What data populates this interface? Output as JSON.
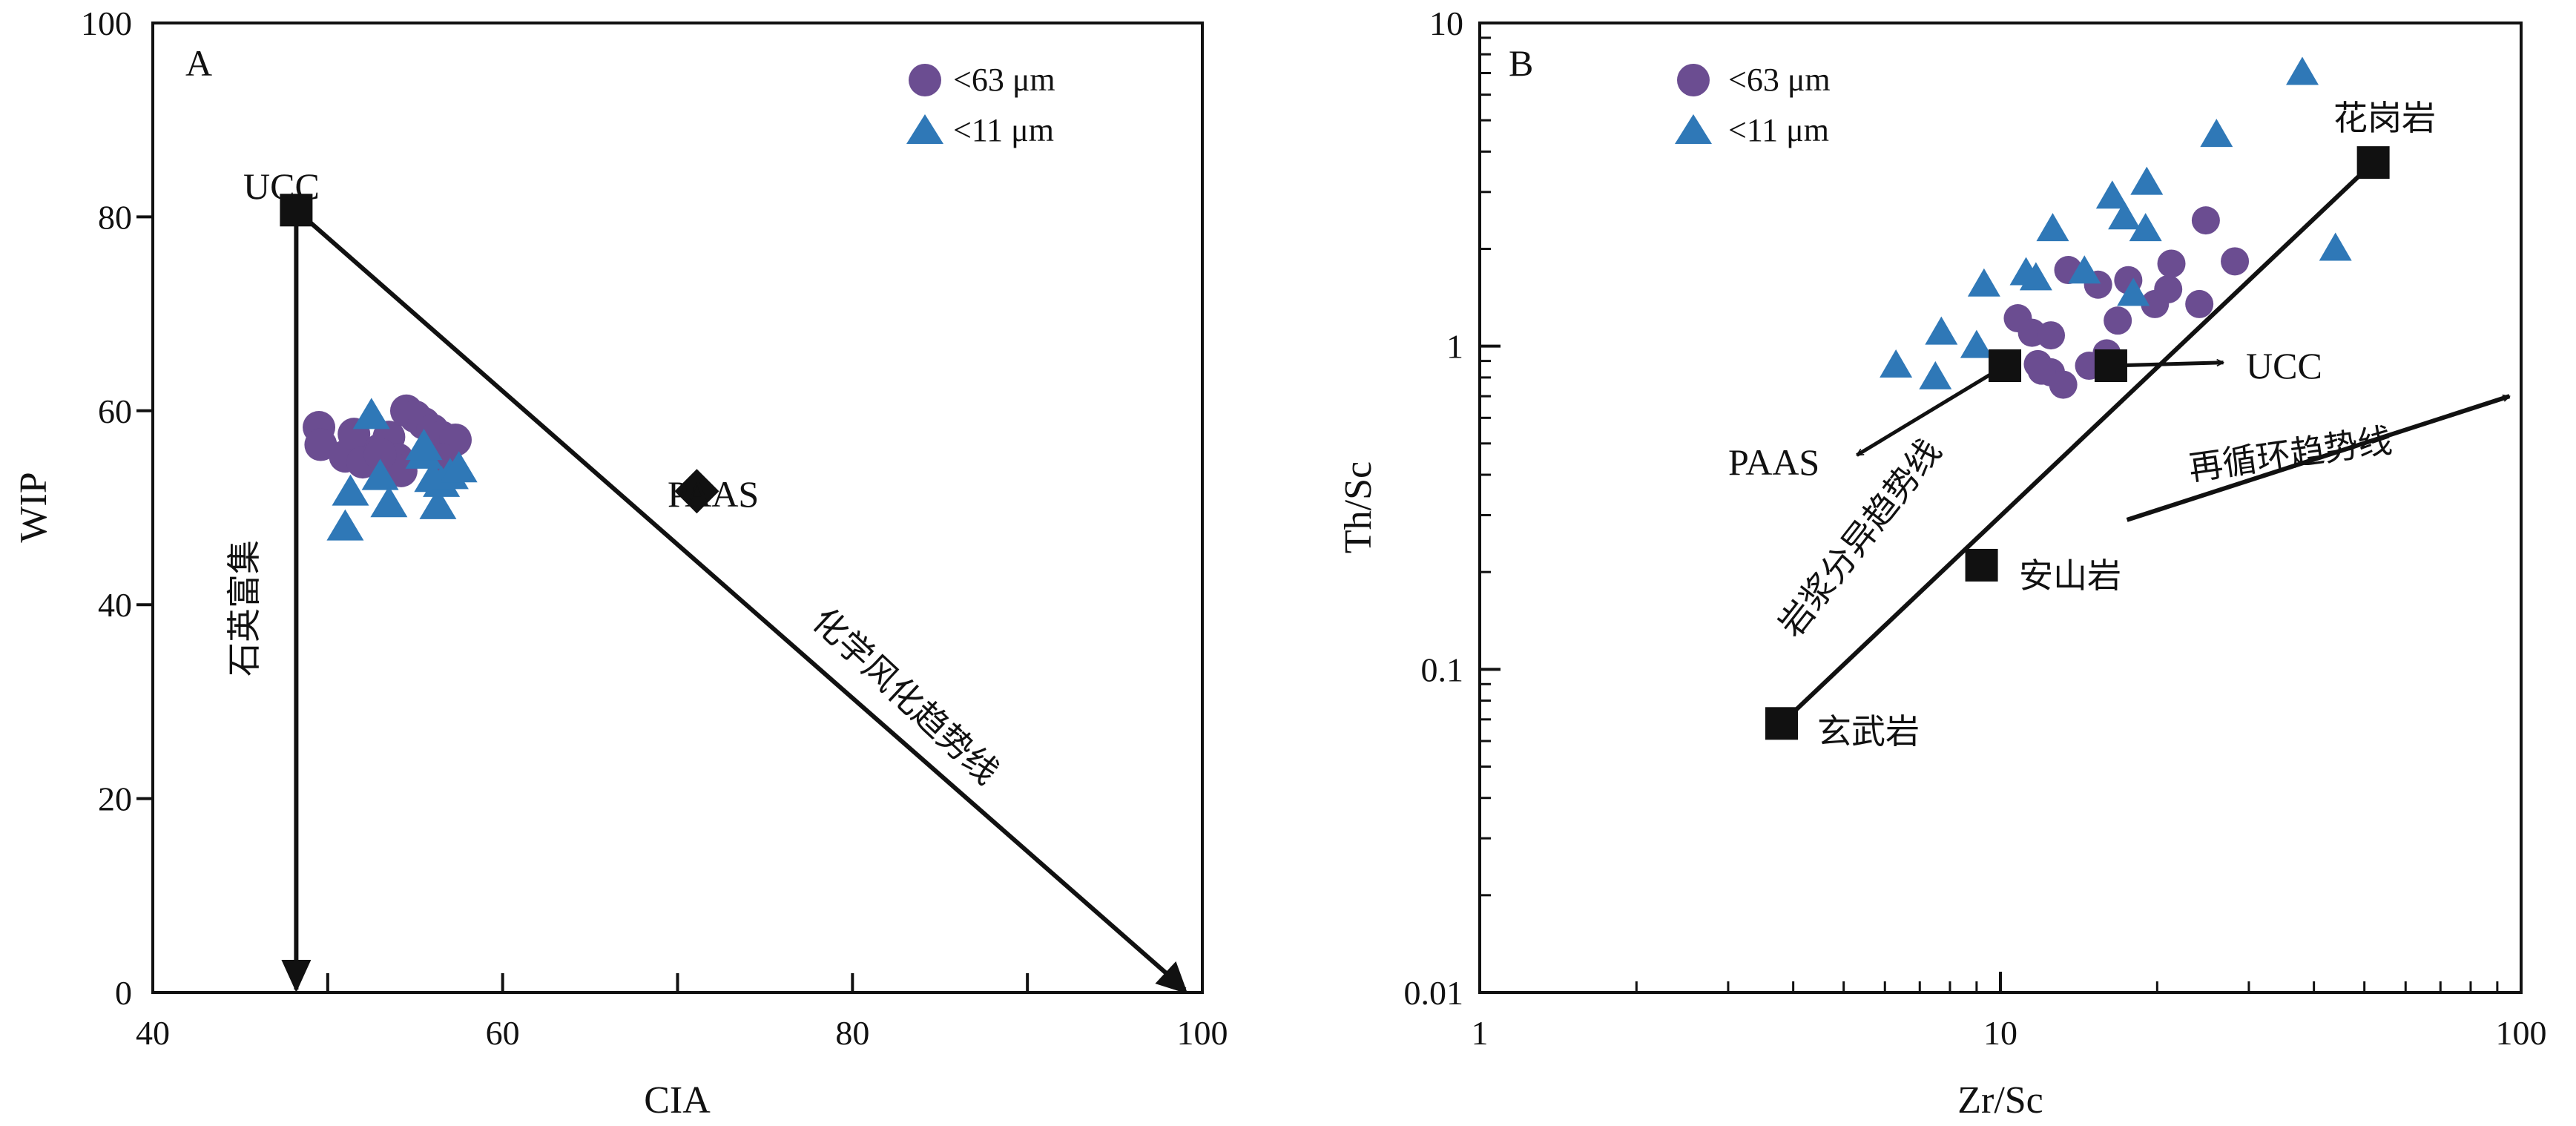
{
  "chart_data": [
    {
      "panel": "A",
      "type": "scatter",
      "xlabel": "CIA",
      "ylabel": "WIP",
      "xlim": [
        40,
        100
      ],
      "ylim": [
        0,
        100
      ],
      "xticks": [
        40,
        60,
        80,
        100
      ],
      "yticks": [
        0,
        20,
        40,
        60,
        80,
        100
      ],
      "x_minor_ticks": [
        50,
        70,
        90
      ],
      "series": [
        {
          "name": "<63 μm",
          "marker": "circle",
          "color": "#6b4d91",
          "points": [
            [
              49.5,
              58.3
            ],
            [
              49.6,
              56.5
            ],
            [
              51.0,
              55.3
            ],
            [
              51.5,
              57.6
            ],
            [
              52.0,
              54.7
            ],
            [
              53.0,
              56.0
            ],
            [
              53.5,
              57.3
            ],
            [
              54.0,
              55.0
            ],
            [
              54.5,
              60.0
            ],
            [
              55.0,
              59.4
            ],
            [
              55.5,
              58.7
            ],
            [
              56.0,
              58.0
            ],
            [
              56.5,
              57.3
            ],
            [
              57.0,
              56.6
            ],
            [
              57.3,
              57.0
            ],
            [
              54.2,
              53.8
            ],
            [
              53.0,
              55.5
            ],
            [
              56.5,
              55.0
            ]
          ]
        },
        {
          "name": "<11 μm",
          "marker": "triangle",
          "color": "#2f78b7",
          "points": [
            [
              51.0,
              48.0
            ],
            [
              51.3,
              51.6
            ],
            [
              52.5,
              59.5
            ],
            [
              53.0,
              53.2
            ],
            [
              53.5,
              50.4
            ],
            [
              55.5,
              55.4
            ],
            [
              56.0,
              53.0
            ],
            [
              56.5,
              52.5
            ],
            [
              56.3,
              50.2
            ],
            [
              57.0,
              53.3
            ],
            [
              57.5,
              54.0
            ],
            [
              55.5,
              56.3
            ]
          ]
        }
      ],
      "reference_points": [
        {
          "label": "UCC",
          "x": 48.2,
          "y": 80.7,
          "marker": "square"
        },
        {
          "label": "PAAS",
          "x": 71.1,
          "y": 51.7,
          "marker": "diamond"
        }
      ],
      "trends": [
        {
          "label": "石英富集",
          "from": [
            48.2,
            80.7
          ],
          "to": [
            48.2,
            0
          ]
        },
        {
          "label": "化学风化趋势线",
          "from": [
            48.2,
            80.7
          ],
          "to": [
            99.0,
            0
          ]
        }
      ]
    },
    {
      "panel": "B",
      "type": "scatter",
      "xlabel": "Zr/Sc",
      "ylabel": "Th/Sc",
      "xscale": "log",
      "yscale": "log",
      "xlim": [
        1,
        100
      ],
      "ylim": [
        0.01,
        10
      ],
      "xticks": [
        1,
        10,
        100
      ],
      "yticks": [
        0.01,
        0.1,
        1,
        10
      ],
      "series": [
        {
          "name": "<63 μm",
          "marker": "circle",
          "color": "#6b4d91",
          "points": [
            [
              10.8,
              1.22
            ],
            [
              11.5,
              1.1
            ],
            [
              12.5,
              1.08
            ],
            [
              11.8,
              0.88
            ],
            [
              12.5,
              0.83
            ],
            [
              13.2,
              0.76
            ],
            [
              13.5,
              1.72
            ],
            [
              15.4,
              1.55
            ],
            [
              14.8,
              0.87
            ],
            [
              16.0,
              0.95
            ],
            [
              16.8,
              1.2
            ],
            [
              17.6,
              1.6
            ],
            [
              19.8,
              1.35
            ],
            [
              21.0,
              1.5
            ],
            [
              21.3,
              1.8
            ],
            [
              24.1,
              1.35
            ],
            [
              24.8,
              2.45
            ],
            [
              28.2,
              1.83
            ],
            [
              12.0,
              0.84
            ]
          ]
        },
        {
          "name": "<11 μm",
          "marker": "triangle",
          "color": "#2f78b7",
          "points": [
            [
              6.3,
              0.87
            ],
            [
              7.5,
              0.8
            ],
            [
              7.7,
              1.1
            ],
            [
              9.0,
              1.0
            ],
            [
              9.3,
              1.55
            ],
            [
              11.2,
              1.68
            ],
            [
              11.7,
              1.62
            ],
            [
              12.6,
              2.3
            ],
            [
              14.5,
              1.7
            ],
            [
              16.4,
              2.9
            ],
            [
              17.3,
              2.5
            ],
            [
              18.0,
              1.45
            ],
            [
              19.1,
              3.2
            ],
            [
              19.0,
              2.3
            ],
            [
              26.0,
              4.5
            ],
            [
              38.0,
              7.0
            ],
            [
              44.0,
              2.0
            ]
          ]
        }
      ],
      "reference_points": [
        {
          "label": "PAAS",
          "x": 10.2,
          "y": 0.87,
          "marker": "square"
        },
        {
          "label": "UCC",
          "x": 16.3,
          "y": 0.87,
          "marker": "square"
        },
        {
          "label": "花岗岩",
          "x": 52.0,
          "y": 3.7,
          "marker": "square"
        },
        {
          "label": "安山岩",
          "x": 9.2,
          "y": 0.21,
          "marker": "square"
        },
        {
          "label": "玄武岩",
          "x": 3.8,
          "y": 0.068,
          "marker": "square"
        }
      ],
      "trends": [
        {
          "label": "岩浆分异趋势线",
          "from": [
            3.8,
            0.068
          ],
          "to": [
            52.0,
            3.7
          ]
        },
        {
          "label": "再循环趋势线",
          "from": [
            17.5,
            0.29
          ],
          "to": [
            95,
            0.7
          ]
        }
      ],
      "annotation_arrows": [
        {
          "from": [
            10.2,
            0.87
          ],
          "to": [
            5.3,
            0.46
          ]
        },
        {
          "from": [
            16.3,
            0.87
          ],
          "to": [
            26.8,
            0.89
          ]
        }
      ]
    }
  ]
}
